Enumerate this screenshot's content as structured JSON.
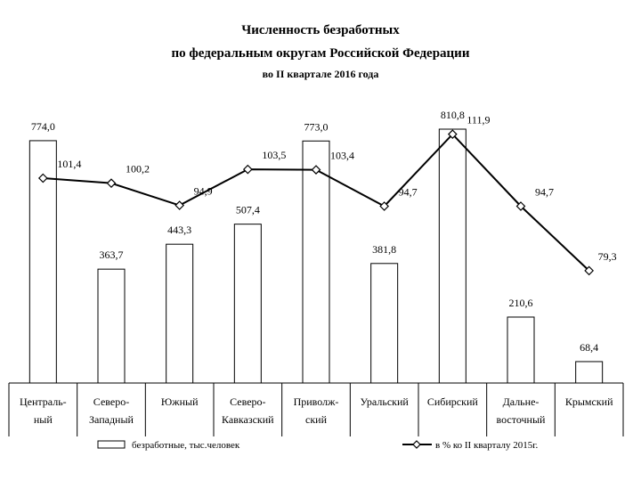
{
  "chart_data": {
    "type": "bar",
    "title_lines": [
      "Численность безработных",
      "по федеральным округам Российской Федерации",
      "во II квартале 2016 года"
    ],
    "categories": [
      [
        "Централь-",
        "ный"
      ],
      [
        "Северо-",
        "Западный"
      ],
      [
        "Южный"
      ],
      [
        "Северо-",
        "Кавказский"
      ],
      [
        "Приволж-",
        "ский"
      ],
      [
        "Уральский"
      ],
      [
        "Сибирский"
      ],
      [
        "Дальне-",
        "восточный"
      ],
      [
        "Крымский"
      ]
    ],
    "series": [
      {
        "name": "безработные, тыс.человек",
        "type": "bar",
        "values": [
          774.0,
          363.7,
          443.3,
          507.4,
          773.0,
          381.8,
          810.8,
          210.6,
          68.4
        ],
        "labels": [
          "774,0",
          "363,7",
          "443,3",
          "507,4",
          "773,0",
          "381,8",
          "810,8",
          "210,6",
          "68,4"
        ]
      },
      {
        "name": "в % ко II кварталу 2015г.",
        "type": "line",
        "values": [
          101.4,
          100.2,
          94.9,
          103.5,
          103.4,
          94.7,
          111.9,
          94.7,
          79.3
        ],
        "labels": [
          "101,4",
          "100,2",
          "94,9",
          "103,5",
          "103,4",
          "94,7",
          "111,9",
          "94,7",
          "79,3"
        ]
      }
    ],
    "legend_position": "bottom",
    "grid": false,
    "colors": {
      "bar_fill": "#ffffff",
      "bar_stroke": "#000000",
      "line": "#000000",
      "marker_fill": "#ffffff"
    }
  }
}
